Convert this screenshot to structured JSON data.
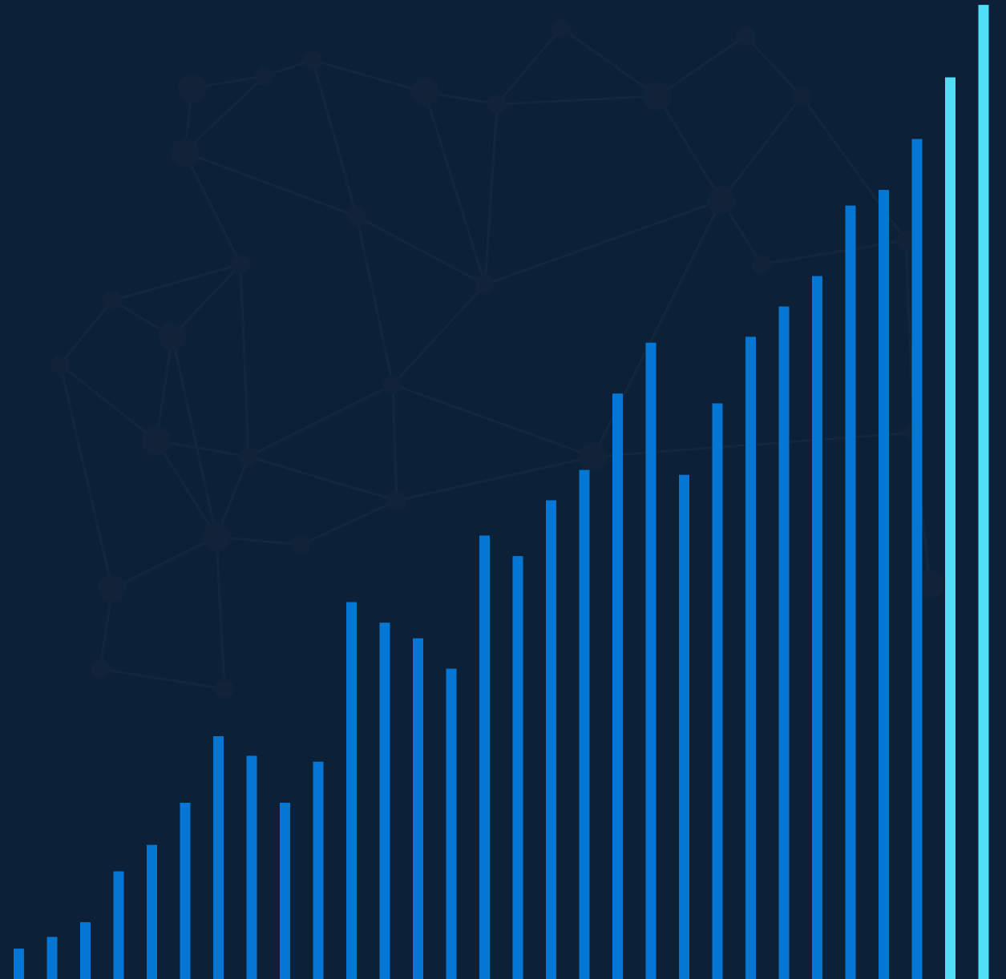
{
  "colors": {
    "background": "#0c2038",
    "network_line": "#13263b",
    "network_node": "#102339",
    "bar_default": "#0477d4",
    "bar_highlight": "#4fe0f8"
  },
  "chart_data": {
    "type": "bar",
    "title": "",
    "xlabel": "",
    "ylabel": "",
    "grid": false,
    "axes_visible": false,
    "ylim": [
      0,
      100
    ],
    "values": [
      3.1,
      4.3,
      5.8,
      11.0,
      13.7,
      18.0,
      24.8,
      22.8,
      18.0,
      22.2,
      38.5,
      36.4,
      34.8,
      31.7,
      45.3,
      43.2,
      48.9,
      52.0,
      59.8,
      65.0,
      51.5,
      58.8,
      65.6,
      68.7,
      71.8,
      79.0,
      80.6,
      85.8,
      92.1,
      99.5
    ],
    "highlighted_indices": [
      28,
      29
    ],
    "series": [
      {
        "values": [
          3.1,
          4.3,
          5.8,
          11.0,
          13.7,
          18.0,
          24.8,
          22.8,
          18.0,
          22.2,
          38.5,
          36.4,
          34.8,
          31.7,
          45.3,
          43.2,
          48.9,
          52.0,
          59.8,
          65.0,
          51.5,
          58.8,
          65.6,
          68.7,
          71.8,
          79.0,
          80.6,
          85.8,
          92.1,
          99.5
        ]
      }
    ],
    "background_decoration": "network-graph"
  }
}
